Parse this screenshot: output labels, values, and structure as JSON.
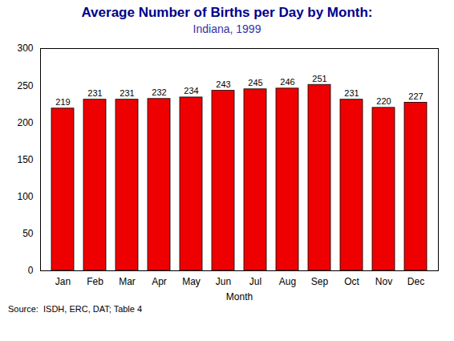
{
  "chart_data": {
    "type": "bar",
    "title": "Average Number of Births per Day by Month:",
    "subtitle": "Indiana, 1999",
    "xlabel": "Month",
    "categories": [
      "Jan",
      "Feb",
      "Mar",
      "Apr",
      "May",
      "Jun",
      "Jul",
      "Aug",
      "Sep",
      "Oct",
      "Nov",
      "Dec"
    ],
    "values": [
      219,
      231,
      231,
      232,
      234,
      243,
      245,
      246,
      251,
      231,
      220,
      227
    ],
    "color": "#EE0000",
    "ylim": [
      0,
      300
    ],
    "yticks": [
      0,
      50,
      100,
      150,
      200,
      250,
      300
    ],
    "grid": false,
    "data_labels": true,
    "source": "Source:  ISDH, ERC, DAT; Table 4"
  }
}
